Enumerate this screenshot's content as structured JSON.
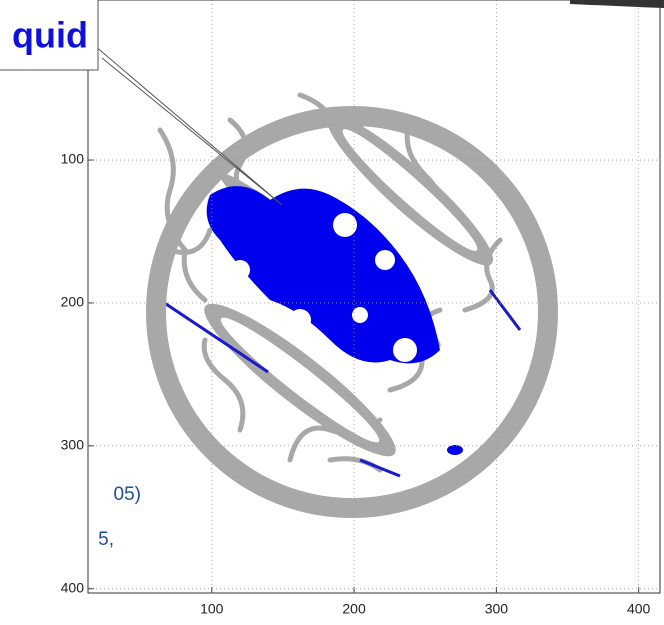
{
  "chart_data": {
    "type": "image",
    "xlim": [
      13,
      415
    ],
    "ylim": [
      403,
      -12
    ],
    "xticks": [
      100,
      200,
      300,
      400
    ],
    "yticks": [
      100,
      200,
      300,
      400
    ],
    "grid": true,
    "callout": "quid",
    "notes": [
      "05)",
      "5,"
    ]
  }
}
